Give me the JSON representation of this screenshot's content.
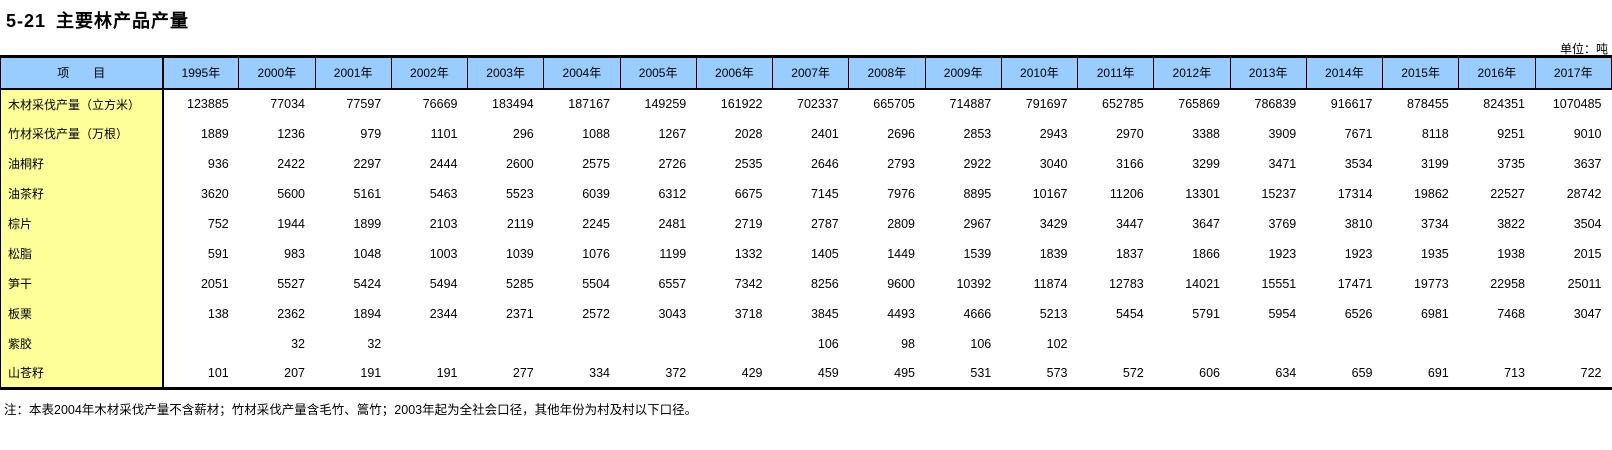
{
  "page": {
    "table_number": "5-21",
    "title": "主要林产品产量",
    "unit_label": "单位：吨",
    "note": "注：本表2004年木材采伐产量不含薪材；竹材采伐产量含毛竹、篙竹；2003年起为全社会口径，其他年份为村及村以下口径。"
  },
  "colors": {
    "header_bg": "#99CCFF",
    "label_column_bg": "#FFFF99",
    "border": "#000000",
    "background": "#FFFFFF"
  },
  "chart_data": {
    "type": "table",
    "item_header": "项　　目",
    "columns": [
      "1995年",
      "2000年",
      "2001年",
      "2002年",
      "2003年",
      "2004年",
      "2005年",
      "2006年",
      "2007年",
      "2008年",
      "2009年",
      "2010年",
      "2011年",
      "2012年",
      "2013年",
      "2014年",
      "2015年",
      "2016年",
      "2017年"
    ],
    "rows": [
      {
        "label": "木材采伐产量（立方米）",
        "values": [
          "123885",
          "77034",
          "77597",
          "76669",
          "183494",
          "187167",
          "149259",
          "161922",
          "702337",
          "665705",
          "714887",
          "791697",
          "652785",
          "765869",
          "786839",
          "916617",
          "878455",
          "824351",
          "1070485"
        ]
      },
      {
        "label": "竹材采伐产量（万根）",
        "values": [
          "1889",
          "1236",
          "979",
          "1101",
          "296",
          "1088",
          "1267",
          "2028",
          "2401",
          "2696",
          "2853",
          "2943",
          "2970",
          "3388",
          "3909",
          "7671",
          "8118",
          "9251",
          "9010"
        ]
      },
      {
        "label": "油桐籽",
        "values": [
          "936",
          "2422",
          "2297",
          "2444",
          "2600",
          "2575",
          "2726",
          "2535",
          "2646",
          "2793",
          "2922",
          "3040",
          "3166",
          "3299",
          "3471",
          "3534",
          "3199",
          "3735",
          "3637"
        ]
      },
      {
        "label": "油茶籽",
        "values": [
          "3620",
          "5600",
          "5161",
          "5463",
          "5523",
          "6039",
          "6312",
          "6675",
          "7145",
          "7976",
          "8895",
          "10167",
          "11206",
          "13301",
          "15237",
          "17314",
          "19862",
          "22527",
          "28742"
        ]
      },
      {
        "label": "棕片",
        "values": [
          "752",
          "1944",
          "1899",
          "2103",
          "2119",
          "2245",
          "2481",
          "2719",
          "2787",
          "2809",
          "2967",
          "3429",
          "3447",
          "3647",
          "3769",
          "3810",
          "3734",
          "3822",
          "3504"
        ]
      },
      {
        "label": "松脂",
        "values": [
          "591",
          "983",
          "1048",
          "1003",
          "1039",
          "1076",
          "1199",
          "1332",
          "1405",
          "1449",
          "1539",
          "1839",
          "1837",
          "1866",
          "1923",
          "1923",
          "1935",
          "1938",
          "2015"
        ]
      },
      {
        "label": "笋干",
        "values": [
          "2051",
          "5527",
          "5424",
          "5494",
          "5285",
          "5504",
          "6557",
          "7342",
          "8256",
          "9600",
          "10392",
          "11874",
          "12783",
          "14021",
          "15551",
          "17471",
          "19773",
          "22958",
          "25011"
        ]
      },
      {
        "label": "板栗",
        "values": [
          "138",
          "2362",
          "1894",
          "2344",
          "2371",
          "2572",
          "3043",
          "3718",
          "3845",
          "4493",
          "4666",
          "5213",
          "5454",
          "5791",
          "5954",
          "6526",
          "6981",
          "7468",
          "3047"
        ]
      },
      {
        "label": "紫胶",
        "values": [
          "",
          "32",
          "32",
          "",
          "",
          "",
          "",
          "",
          "106",
          "98",
          "106",
          "102",
          "",
          "",
          "",
          "",
          "",
          "",
          ""
        ]
      },
      {
        "label": "山苍籽",
        "values": [
          "101",
          "207",
          "191",
          "191",
          "277",
          "334",
          "372",
          "429",
          "459",
          "495",
          "531",
          "573",
          "572",
          "606",
          "634",
          "659",
          "691",
          "713",
          "722"
        ]
      }
    ]
  }
}
